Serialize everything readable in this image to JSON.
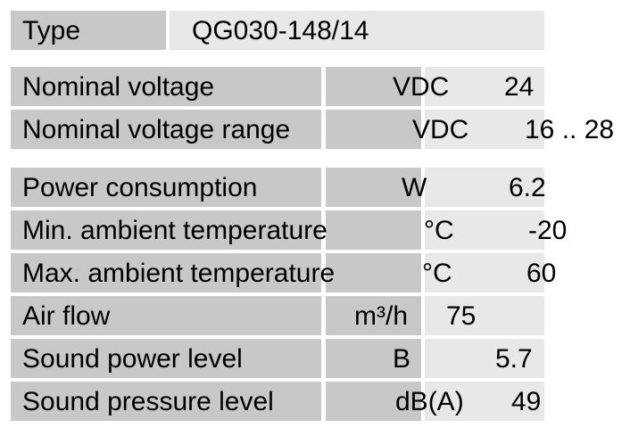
{
  "type_row": {
    "label": "Type",
    "value": "QG030-148/14"
  },
  "specs": [
    {
      "label": "Nominal voltage",
      "unit": "VDC",
      "value": "24"
    },
    {
      "label": "Nominal voltage range",
      "unit": "VDC",
      "value": "16 .. 28"
    },
    {
      "label": "Power consumption",
      "unit": "W",
      "value": "6.2"
    },
    {
      "label": "Min. ambient temperature",
      "unit": "°C",
      "value": "-20"
    },
    {
      "label": "Max. ambient temperature",
      "unit": "°C",
      "value": "60"
    },
    {
      "label": "Air flow",
      "unit": "m³/h",
      "value": "75"
    },
    {
      "label": "Sound power level",
      "unit": "B",
      "value": "5.7"
    },
    {
      "label": "Sound pressure level",
      "unit": "dB(A)",
      "value": "49"
    }
  ],
  "colors": {
    "label_bg": "#c8c8c8",
    "value_bg": "#e8e8e8"
  }
}
